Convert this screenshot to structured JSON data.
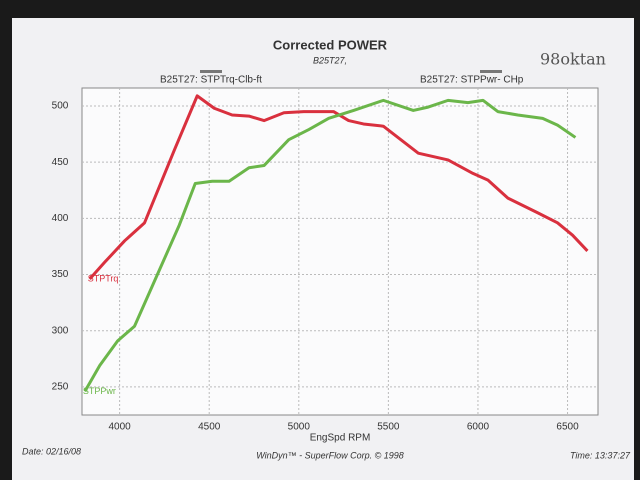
{
  "chart_data": {
    "type": "line",
    "title": "Corrected POWER",
    "subtitle": "B25T27,",
    "x_label": "EngSpd RPM",
    "handwritten_note": "98oktan",
    "footer_left": "Date: 02/16/08",
    "footer_center": "WinDyn™ - SuperFlow Corp. © 1998",
    "footer_right": "Time: 13:37:27",
    "xlim": [
      3790,
      6670
    ],
    "ylim": [
      225,
      516
    ],
    "xticks": [
      4000,
      4500,
      5000,
      5500,
      6000,
      6500
    ],
    "yticks": [
      250,
      300,
      350,
      400,
      450,
      500
    ],
    "grid": true,
    "series": [
      {
        "name": "B25T27: STPTrq-Clb-ft",
        "tag": "STPTrq",
        "color": "#d9303e",
        "x": [
          3833,
          3917,
          4028,
          4139,
          4306,
          4433,
          4528,
          4628,
          4722,
          4806,
          4917,
          5028,
          5194,
          5278,
          5361,
          5472,
          5667,
          5833,
          5972,
          6056,
          6167,
          6333,
          6444,
          6528,
          6611
        ],
        "values": [
          346,
          361,
          380,
          396,
          461,
          509,
          498,
          492,
          491,
          487,
          494,
          495,
          495,
          487,
          484,
          482,
          458,
          452,
          440,
          434,
          418,
          405,
          396,
          385,
          371
        ]
      },
      {
        "name": "B25T27: STPPwr- CHp",
        "tag": "STPPwr",
        "color": "#6bb64a",
        "x": [
          3806,
          3889,
          3989,
          4083,
          4222,
          4333,
          4422,
          4517,
          4611,
          4722,
          4806,
          4944,
          5056,
          5167,
          5306,
          5472,
          5639,
          5722,
          5833,
          5944,
          6028,
          6111,
          6222,
          6361,
          6444,
          6544
        ],
        "values": [
          246,
          269,
          291,
          304,
          354,
          394,
          431,
          433,
          433,
          445,
          447,
          470,
          479,
          489,
          496,
          505,
          496,
          499,
          505,
          503,
          505,
          495,
          492,
          489,
          483,
          472
        ]
      }
    ]
  }
}
